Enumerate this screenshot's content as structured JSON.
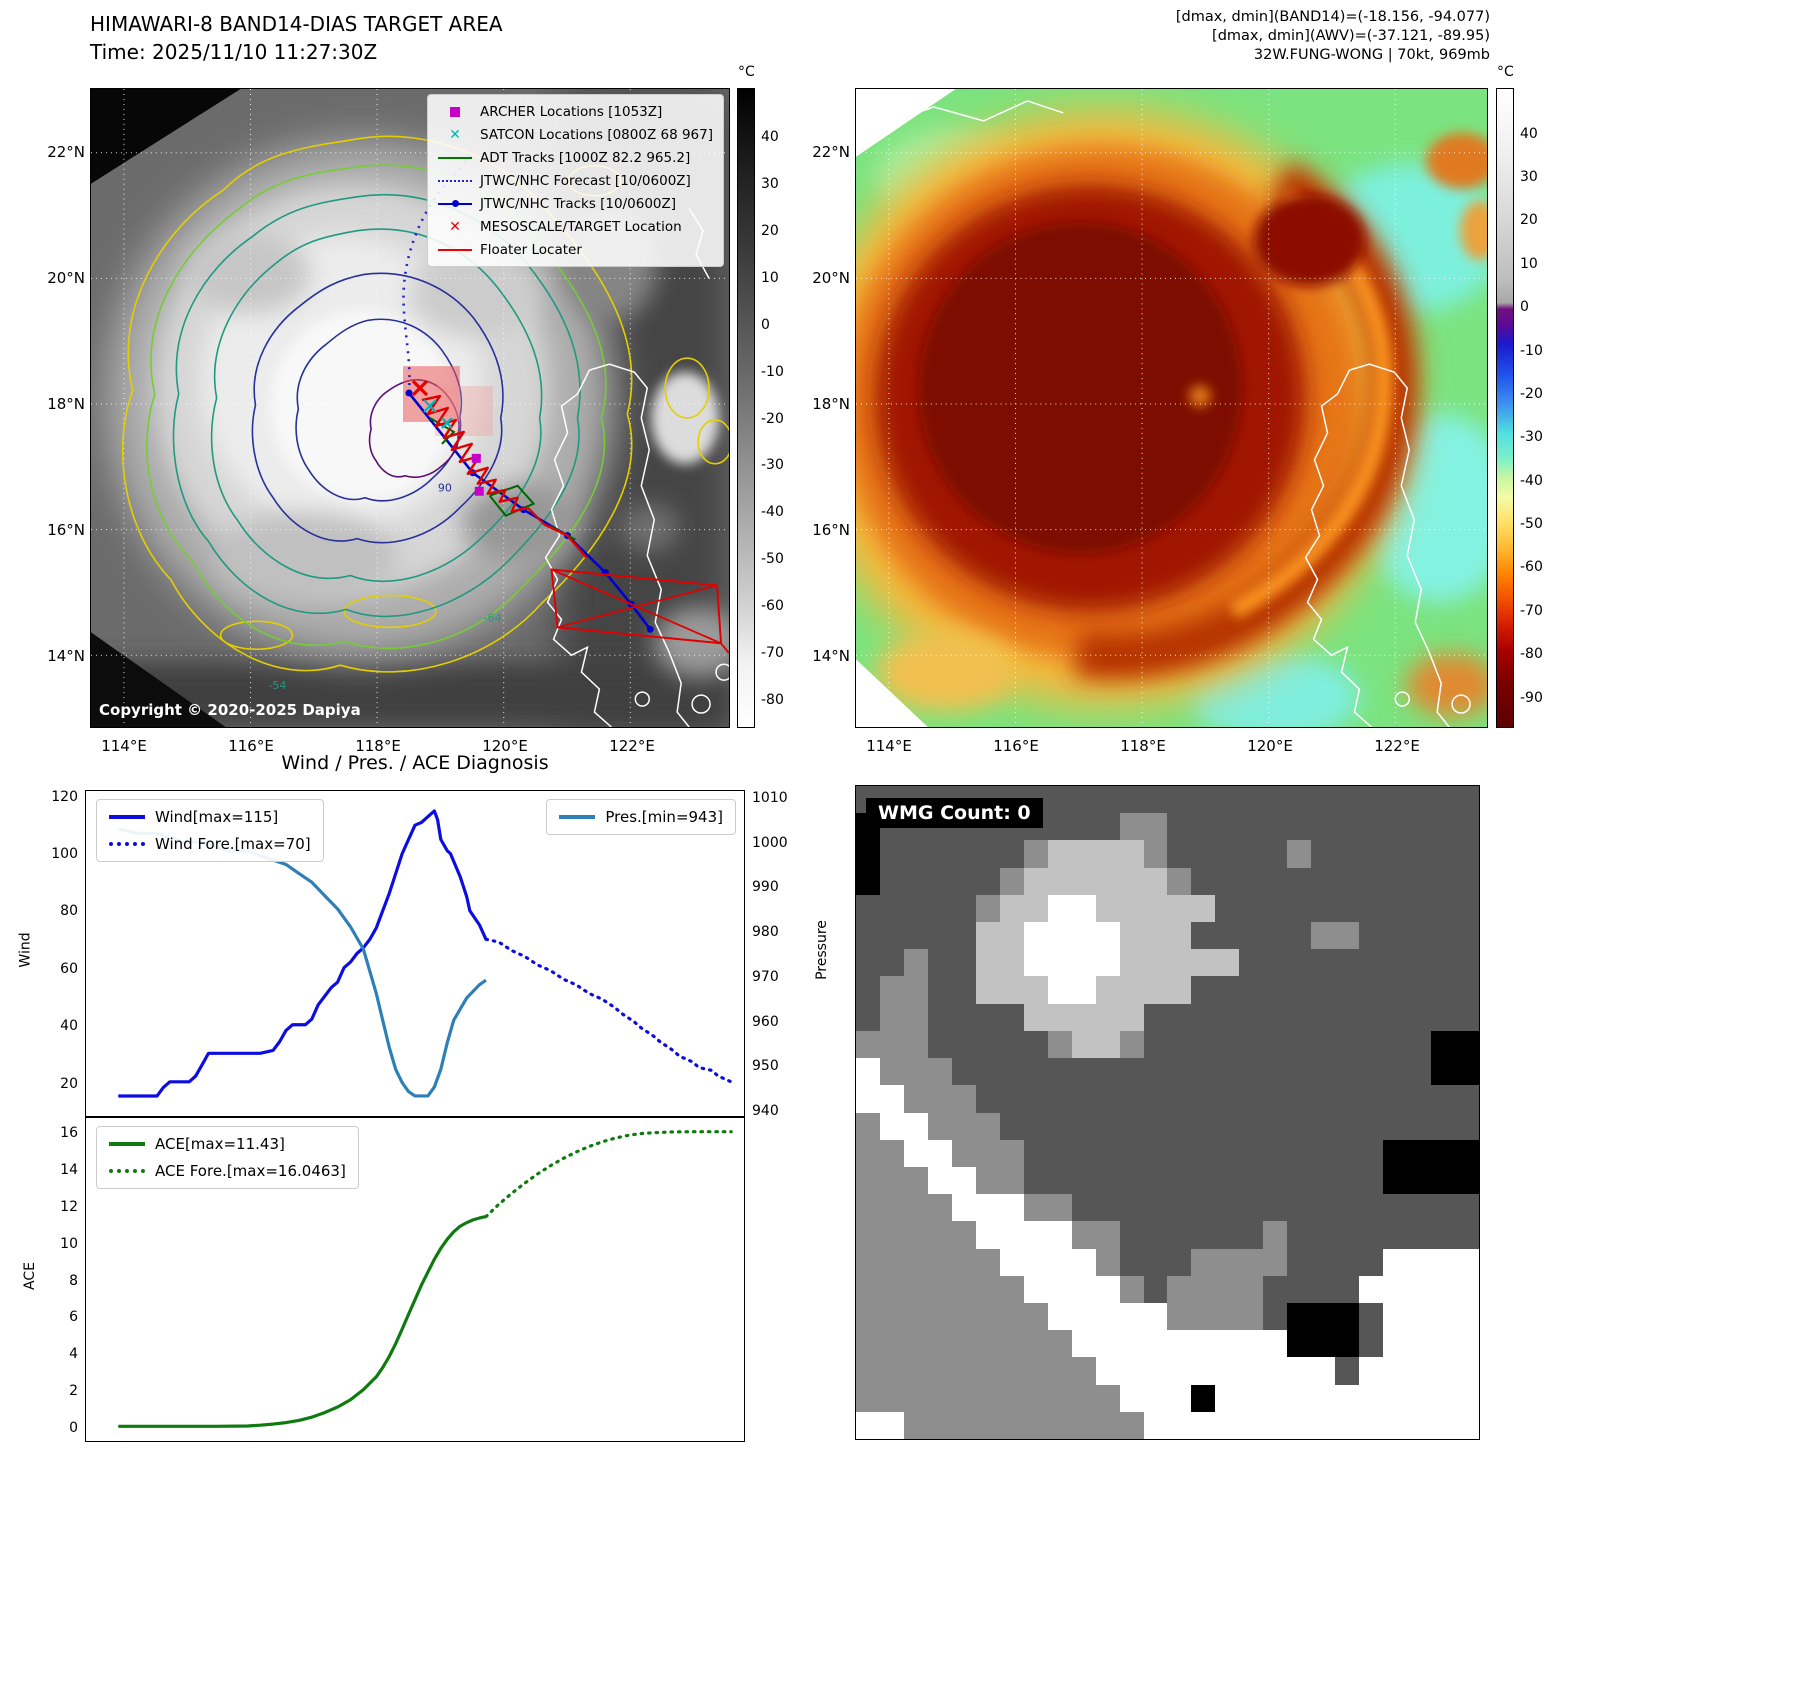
{
  "band14_panel": {
    "title": "HIMAWARI-8 BAND14-DIAS TARGET AREA",
    "subtitle": "Time: 2025/11/10 11:27:30Z",
    "copyright": "Copyright © 2020-2025 Dapiya",
    "colorbar_unit": "°C",
    "colorbar_ticks": [
      40,
      30,
      20,
      10,
      0,
      -10,
      -20,
      -30,
      -40,
      -50,
      -60,
      -70,
      -80
    ],
    "x_ticks": [
      "114°E",
      "116°E",
      "118°E",
      "120°E",
      "122°E"
    ],
    "y_ticks": [
      "22°N",
      "20°N",
      "18°N",
      "16°N",
      "14°N"
    ],
    "contour_labels": [
      "90",
      "-64",
      "-54"
    ],
    "legend": [
      {
        "label": "ARCHER Locations [1053Z]",
        "marker": "square",
        "color": "#c800c8"
      },
      {
        "label": "SATCON Locations [0800Z 68 967]",
        "marker": "x",
        "color": "#00b5b8"
      },
      {
        "label": "ADT Tracks [1000Z 82.2 965.2]",
        "marker": "line",
        "color": "#007700"
      },
      {
        "label": "JTWC/NHC Forecast [10/0600Z]",
        "marker": "dotted-line",
        "color": "#2222cc"
      },
      {
        "label": "JTWC/NHC Tracks [10/0600Z]",
        "marker": "line-marker",
        "color": "#0000cc"
      },
      {
        "label": "MESOSCALE/TARGET Location",
        "marker": "x",
        "color": "#ee0000"
      },
      {
        "label": "Floater Locater",
        "marker": "line",
        "color": "#ee0000"
      }
    ]
  },
  "awv_panel": {
    "header_lines": [
      "[dmax, dmin](BAND14)=(-18.156, -94.077)",
      "[dmax, dmin](AWV)=(-37.121, -89.95)",
      "32W.FUNG-WONG | 70kt, 969mb"
    ],
    "colorbar_unit": "°C",
    "colorbar_ticks": [
      40,
      30,
      20,
      10,
      0,
      -10,
      -20,
      -30,
      -40,
      -50,
      -60,
      -70,
      -80,
      -90
    ],
    "x_ticks": [
      "114°E",
      "116°E",
      "118°E",
      "120°E",
      "122°E"
    ],
    "y_ticks": [
      "22°N",
      "20°N",
      "18°N",
      "16°N",
      "14°N"
    ]
  },
  "wmg_panel": {
    "label": "WMG Count: 0",
    "palette": {
      "0": "#000000",
      "1": "#565656",
      "2": "#8e8e8e",
      "3": "#c2c2c2",
      "4": "#ffffff"
    },
    "grid": [
      "11111111111111111111111111",
      "01111111111221111111111111",
      "01111112333321111121111111",
      "01111123333332111111111111",
      "11111233443333311111111111",
      "11111334444333111112211111",
      "11211334444333331111111111",
      "12211333443333111111111111",
      "12211113333311111111111111",
      "22211111233211111111111100",
      "42221111111111111111111100",
      "44222111111111111111111111",
      "24422211111111111111111111",
      "22442221111111111111110000",
      "22244221111111111111110000",
      "22224442211111111111111111",
      "22222444422111111211111111",
      "22222244442111222211114444",
      "22222224444212222111144444",
      "22222222444442222100014444",
      "22222222244444444400014444",
      "22222222224444444444144444",
      "22222222222444044444444444",
      "44222222222244444444444444"
    ]
  },
  "chart_data": [
    {
      "type": "line",
      "title": "Wind / Pres. / ACE Diagnosis",
      "xlabel": "",
      "ylabel_left": "Wind",
      "ylabel_right": "Pressure",
      "xlim": [
        0,
        1.02
      ],
      "ylim_left": [
        8,
        122
      ],
      "ylim_right": [
        938.5,
        1011.5
      ],
      "yticks_left": [
        20,
        40,
        60,
        80,
        100,
        120
      ],
      "yticks_right": [
        940,
        950,
        960,
        970,
        980,
        990,
        1000,
        1010
      ],
      "grid": false,
      "legend_left": [
        {
          "label": "Wind[max=115]",
          "color": "#0d0de0",
          "dash": "solid"
        },
        {
          "label": "Wind Fore.[max=70]",
          "color": "#0d0de0",
          "dash": "dotted"
        }
      ],
      "legend_right": [
        {
          "label": "Pres.[min=943]",
          "color": "#2e7fb5",
          "dash": "solid"
        }
      ],
      "series": [
        {
          "name": "Wind",
          "axis": "left",
          "color": "#0d0de0",
          "dash": "solid",
          "points": [
            [
              0.05,
              15
            ],
            [
              0.09,
              15
            ],
            [
              0.11,
              15
            ],
            [
              0.12,
              18
            ],
            [
              0.13,
              20
            ],
            [
              0.16,
              20
            ],
            [
              0.17,
              22
            ],
            [
              0.18,
              26
            ],
            [
              0.19,
              30
            ],
            [
              0.23,
              30
            ],
            [
              0.27,
              30
            ],
            [
              0.29,
              31
            ],
            [
              0.3,
              34
            ],
            [
              0.31,
              38
            ],
            [
              0.32,
              40
            ],
            [
              0.34,
              40
            ],
            [
              0.35,
              42
            ],
            [
              0.36,
              47
            ],
            [
              0.37,
              50
            ],
            [
              0.38,
              53
            ],
            [
              0.39,
              55
            ],
            [
              0.4,
              60
            ],
            [
              0.41,
              62
            ],
            [
              0.42,
              65
            ],
            [
              0.43,
              67
            ],
            [
              0.44,
              70
            ],
            [
              0.45,
              74
            ],
            [
              0.46,
              80
            ],
            [
              0.47,
              86
            ],
            [
              0.48,
              93
            ],
            [
              0.49,
              100
            ],
            [
              0.5,
              105
            ],
            [
              0.51,
              110
            ],
            [
              0.52,
              111
            ],
            [
              0.53,
              113
            ],
            [
              0.54,
              115
            ],
            [
              0.545,
              112
            ],
            [
              0.55,
              105
            ],
            [
              0.56,
              101
            ],
            [
              0.565,
              100
            ],
            [
              0.58,
              92
            ],
            [
              0.59,
              85
            ],
            [
              0.595,
              80
            ],
            [
              0.61,
              75
            ],
            [
              0.62,
              70
            ]
          ]
        },
        {
          "name": "Wind Forecast",
          "axis": "left",
          "color": "#0d0de0",
          "dash": "dotted",
          "points": [
            [
              0.62,
              70
            ],
            [
              0.64,
              69
            ],
            [
              0.66,
              66
            ],
            [
              0.68,
              64
            ],
            [
              0.7,
              61
            ],
            [
              0.72,
              59
            ],
            [
              0.74,
              56
            ],
            [
              0.76,
              54
            ],
            [
              0.78,
              51
            ],
            [
              0.8,
              49
            ],
            [
              0.82,
              46
            ],
            [
              0.83,
              44
            ],
            [
              0.85,
              41
            ],
            [
              0.86,
              39
            ],
            [
              0.88,
              36
            ],
            [
              0.89,
              34
            ],
            [
              0.91,
              31
            ],
            [
              0.92,
              29
            ],
            [
              0.94,
              27
            ],
            [
              0.95,
              25
            ],
            [
              0.97,
              24
            ],
            [
              0.98,
              22
            ],
            [
              1.0,
              20
            ]
          ]
        },
        {
          "name": "Pressure",
          "axis": "right",
          "color": "#2e7fb5",
          "dash": "solid",
          "points": [
            [
              0.05,
              1003
            ],
            [
              0.08,
              1002
            ],
            [
              0.11,
              1002
            ],
            [
              0.13,
              1001
            ],
            [
              0.15,
              1000
            ],
            [
              0.18,
              1000
            ],
            [
              0.2,
              999
            ],
            [
              0.22,
              998
            ],
            [
              0.25,
              998
            ],
            [
              0.27,
              997
            ],
            [
              0.29,
              996
            ],
            [
              0.31,
              995
            ],
            [
              0.33,
              993
            ],
            [
              0.35,
              991
            ],
            [
              0.37,
              988
            ],
            [
              0.39,
              985
            ],
            [
              0.41,
              981
            ],
            [
              0.43,
              976
            ],
            [
              0.44,
              971
            ],
            [
              0.45,
              966
            ],
            [
              0.46,
              960
            ],
            [
              0.47,
              954
            ],
            [
              0.48,
              949
            ],
            [
              0.49,
              946
            ],
            [
              0.5,
              944
            ],
            [
              0.51,
              943
            ],
            [
              0.53,
              943
            ],
            [
              0.54,
              945
            ],
            [
              0.55,
              949
            ],
            [
              0.56,
              955
            ],
            [
              0.57,
              960
            ],
            [
              0.59,
              965
            ],
            [
              0.61,
              968
            ],
            [
              0.62,
              969
            ]
          ]
        }
      ]
    },
    {
      "type": "line",
      "title": "",
      "xlabel": "",
      "ylabel_left": "ACE",
      "xlim": [
        0,
        1.02
      ],
      "ylim_left": [
        -0.8,
        16.8
      ],
      "yticks_left": [
        0,
        2,
        4,
        6,
        8,
        10,
        12,
        14,
        16
      ],
      "grid": false,
      "legend_left": [
        {
          "label": "ACE[max=11.43]",
          "color": "#0f7a0f",
          "dash": "solid"
        },
        {
          "label": "ACE Fore.[max=16.0463]",
          "color": "#0f7a0f",
          "dash": "dotted"
        }
      ],
      "series": [
        {
          "name": "ACE",
          "axis": "left",
          "color": "#0f7a0f",
          "dash": "solid",
          "points": [
            [
              0.05,
              0
            ],
            [
              0.1,
              0
            ],
            [
              0.15,
              0
            ],
            [
              0.2,
              0
            ],
            [
              0.25,
              0.02
            ],
            [
              0.27,
              0.06
            ],
            [
              0.29,
              0.12
            ],
            [
              0.31,
              0.2
            ],
            [
              0.33,
              0.32
            ],
            [
              0.35,
              0.5
            ],
            [
              0.37,
              0.75
            ],
            [
              0.39,
              1.05
            ],
            [
              0.41,
              1.45
            ],
            [
              0.43,
              2.0
            ],
            [
              0.45,
              2.7
            ],
            [
              0.46,
              3.2
            ],
            [
              0.47,
              3.8
            ],
            [
              0.48,
              4.5
            ],
            [
              0.49,
              5.3
            ],
            [
              0.5,
              6.1
            ],
            [
              0.51,
              6.9
            ],
            [
              0.52,
              7.7
            ],
            [
              0.53,
              8.4
            ],
            [
              0.54,
              9.1
            ],
            [
              0.55,
              9.7
            ],
            [
              0.56,
              10.2
            ],
            [
              0.57,
              10.6
            ],
            [
              0.58,
              10.9
            ],
            [
              0.59,
              11.1
            ],
            [
              0.6,
              11.25
            ],
            [
              0.61,
              11.35
            ],
            [
              0.62,
              11.43
            ]
          ]
        },
        {
          "name": "ACE Forecast",
          "axis": "left",
          "color": "#0f7a0f",
          "dash": "dotted",
          "points": [
            [
              0.62,
              11.43
            ],
            [
              0.64,
              12.1
            ],
            [
              0.66,
              12.7
            ],
            [
              0.68,
              13.25
            ],
            [
              0.7,
              13.75
            ],
            [
              0.72,
              14.2
            ],
            [
              0.74,
              14.6
            ],
            [
              0.76,
              14.95
            ],
            [
              0.78,
              15.25
            ],
            [
              0.8,
              15.5
            ],
            [
              0.82,
              15.7
            ],
            [
              0.84,
              15.85
            ],
            [
              0.86,
              15.95
            ],
            [
              0.88,
              16.0
            ],
            [
              0.91,
              16.04
            ],
            [
              0.94,
              16.05
            ],
            [
              1.0,
              16.05
            ]
          ]
        }
      ]
    }
  ]
}
